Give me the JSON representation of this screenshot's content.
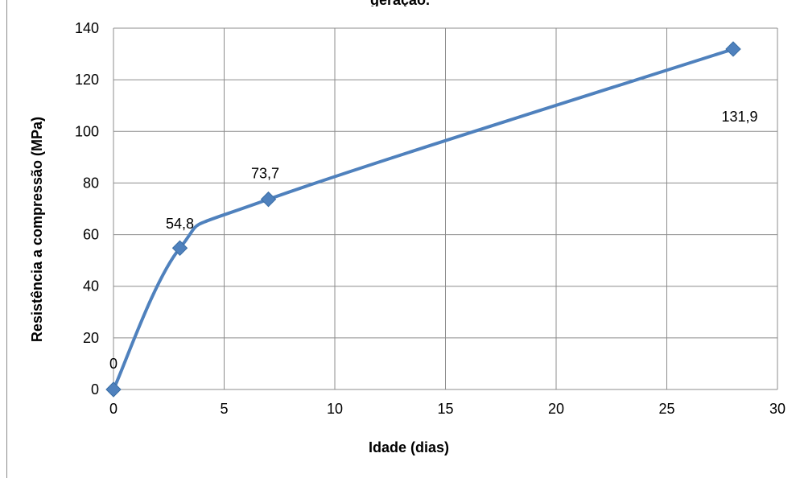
{
  "chart_data": {
    "type": "line",
    "title": "geração.",
    "xlabel": "Idade (dias)",
    "ylabel": "Resistência a compressão (MPa)",
    "xlim": [
      0,
      30
    ],
    "ylim": [
      0,
      140
    ],
    "xticks": [
      0,
      5,
      10,
      15,
      20,
      25,
      30
    ],
    "yticks": [
      0,
      20,
      40,
      60,
      80,
      100,
      120,
      140
    ],
    "grid": true,
    "smooth": true,
    "series": [
      {
        "x": [
          0,
          3,
          7,
          28
        ],
        "y": [
          0,
          54.8,
          73.7,
          131.9
        ],
        "labels": [
          "0",
          "54,8",
          "73,7",
          "131,9"
        ],
        "color": "#4F81BD",
        "marker": "diamond"
      }
    ]
  }
}
